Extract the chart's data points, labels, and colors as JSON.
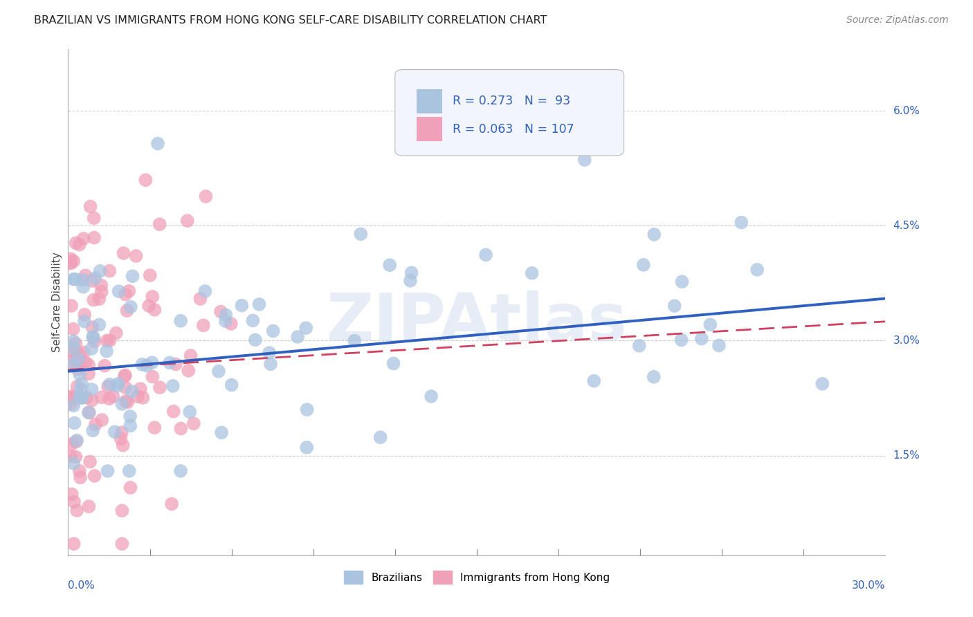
{
  "title": "BRAZILIAN VS IMMIGRANTS FROM HONG KONG SELF-CARE DISABILITY CORRELATION CHART",
  "source": "Source: ZipAtlas.com",
  "ylabel": "Self-Care Disability",
  "yticks": [
    1.5,
    3.0,
    4.5,
    6.0
  ],
  "ytick_labels": [
    "1.5%",
    "3.0%",
    "4.5%",
    "6.0%"
  ],
  "xmin": 0.0,
  "xmax": 30.0,
  "ymin": 0.2,
  "ymax": 6.8,
  "blue_color": "#aac4e0",
  "pink_color": "#f0a0b8",
  "blue_line_color": "#3060c0",
  "pink_line_color": "#d04060",
  "R_blue": 0.273,
  "N_blue": 93,
  "R_pink": 0.063,
  "N_pink": 107,
  "watermark": "ZIPAtlas",
  "blue_trendline_x0": 0.0,
  "blue_trendline_y0": 2.6,
  "blue_trendline_x1": 30.0,
  "blue_trendline_y1": 3.55,
  "pink_trendline_x0": 0.0,
  "pink_trendline_y0": 2.62,
  "pink_trendline_x1": 30.0,
  "pink_trendline_y1": 3.25
}
